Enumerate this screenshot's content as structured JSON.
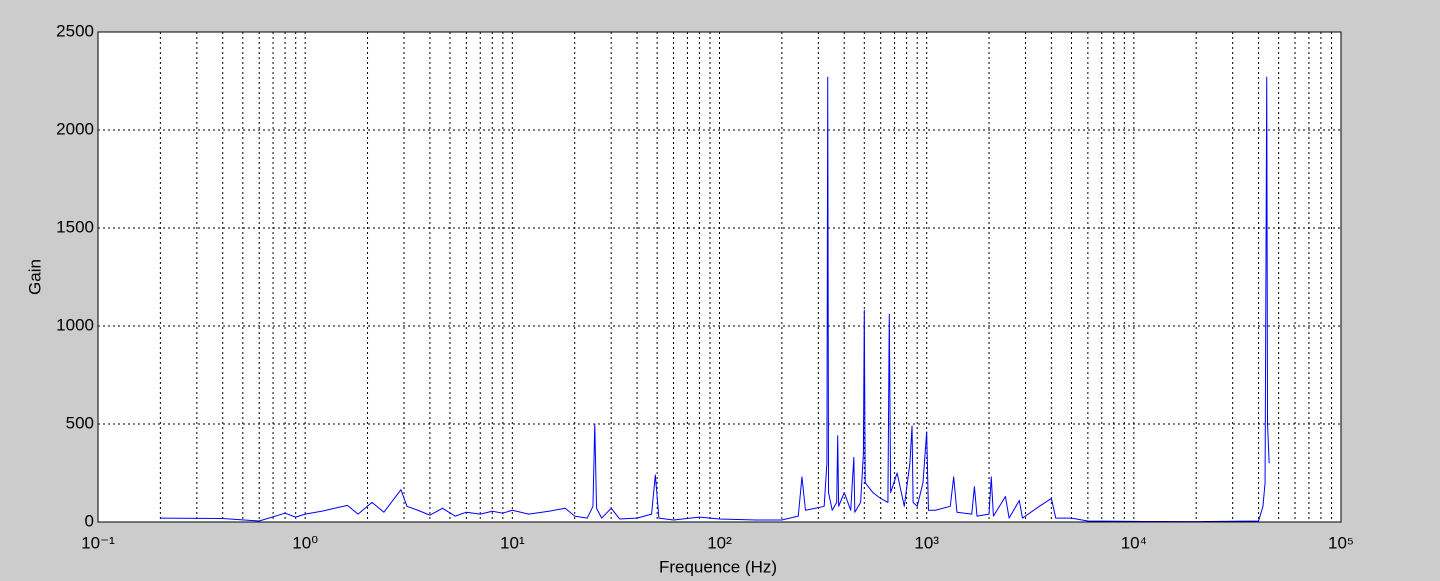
{
  "chart_data": {
    "type": "line",
    "x_label": "Frequence (Hz)",
    "y_label": "Gain",
    "x_scale": "log",
    "grid": true,
    "color": "#0000ff",
    "xlim": [
      0.1,
      100000
    ],
    "ylim": [
      0,
      2500
    ],
    "xticks": [
      {
        "value": 0.1,
        "label": "10⁻¹"
      },
      {
        "value": 1,
        "label": "10⁰"
      },
      {
        "value": 10,
        "label": "10¹"
      },
      {
        "value": 100,
        "label": "10²"
      },
      {
        "value": 1000,
        "label": "10³"
      },
      {
        "value": 10000,
        "label": "10⁴"
      },
      {
        "value": 100000,
        "label": "10⁵"
      }
    ],
    "x_minor_ticks": [
      0.2,
      0.3,
      0.4,
      0.5,
      0.6,
      0.7,
      0.8,
      0.9,
      2,
      3,
      4,
      5,
      6,
      7,
      8,
      9,
      20,
      30,
      40,
      50,
      60,
      70,
      80,
      90,
      200,
      300,
      400,
      500,
      600,
      700,
      800,
      900,
      2000,
      3000,
      4000,
      5000,
      6000,
      7000,
      8000,
      9000,
      20000,
      30000,
      40000,
      50000,
      60000,
      70000,
      80000,
      90000
    ],
    "yticks": [
      0,
      500,
      1000,
      1500,
      2000,
      2500
    ],
    "x": [
      0.2,
      0.4,
      0.6,
      0.8,
      0.9,
      1.0,
      1.2,
      1.6,
      1.8,
      2.1,
      2.4,
      2.9,
      3.1,
      3.5,
      4,
      4.6,
      5.3,
      6,
      7,
      8,
      9,
      10,
      12,
      15,
      18,
      20,
      23,
      24.5,
      25,
      25.5,
      27,
      30,
      33,
      40,
      47,
      49,
      51,
      60,
      80,
      100,
      150,
      200,
      240,
      250,
      260,
      290,
      320,
      330,
      333,
      336,
      350,
      368,
      372,
      376,
      400,
      430,
      445,
      450,
      480,
      495,
      500,
      505,
      550,
      600,
      650,
      660,
      670,
      720,
      780,
      830,
      850,
      860,
      900,
      960,
      1000,
      1020,
      1100,
      1300,
      1350,
      1400,
      1650,
      1700,
      1750,
      2000,
      2050,
      2100,
      2400,
      2500,
      2800,
      2900,
      3500,
      4000,
      4200,
      5000,
      6000,
      10000,
      20000,
      40000,
      42000,
      43000,
      43800,
      44200,
      45000
    ],
    "values": [
      20,
      18,
      5,
      45,
      25,
      40,
      55,
      85,
      40,
      100,
      50,
      165,
      80,
      60,
      35,
      70,
      30,
      50,
      40,
      55,
      45,
      60,
      40,
      55,
      70,
      30,
      20,
      80,
      500,
      70,
      20,
      70,
      15,
      20,
      40,
      240,
      20,
      10,
      25,
      15,
      10,
      10,
      30,
      230,
      60,
      70,
      80,
      300,
      2270,
      150,
      60,
      100,
      440,
      80,
      150,
      60,
      330,
      50,
      100,
      350,
      1080,
      200,
      150,
      120,
      100,
      1060,
      150,
      250,
      80,
      300,
      490,
      100,
      80,
      200,
      460,
      60,
      60,
      80,
      230,
      50,
      40,
      180,
      30,
      40,
      230,
      30,
      130,
      20,
      110,
      20,
      80,
      120,
      20,
      20,
      5,
      3,
      2,
      5,
      80,
      200,
      2270,
      500,
      300
    ]
  }
}
